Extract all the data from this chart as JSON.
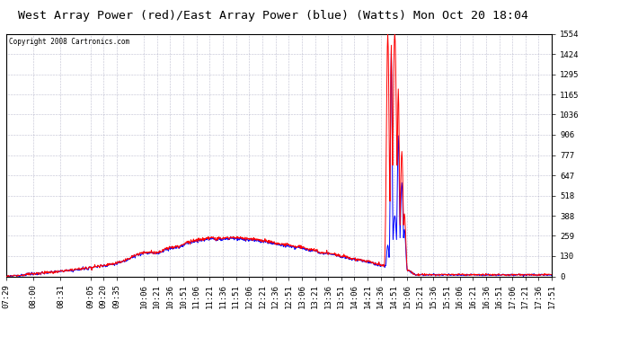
{
  "title": "West Array Power (red)/East Array Power (blue) (Watts) Mon Oct 20 18:04",
  "copyright": "Copyright 2008 Cartronics.com",
  "y_min": 0.0,
  "y_max": 1553.8,
  "y_ticks": [
    0.0,
    129.5,
    259.0,
    388.4,
    517.9,
    647.4,
    776.9,
    906.4,
    1035.9,
    1165.3,
    1294.8,
    1424.3,
    1553.8
  ],
  "x_labels": [
    "07:29",
    "08:00",
    "08:31",
    "09:05",
    "09:20",
    "09:35",
    "10:06",
    "10:21",
    "10:36",
    "10:51",
    "11:06",
    "11:21",
    "11:36",
    "11:51",
    "12:06",
    "12:21",
    "12:36",
    "12:51",
    "13:06",
    "13:21",
    "13:36",
    "13:51",
    "14:06",
    "14:21",
    "14:36",
    "14:51",
    "15:06",
    "15:21",
    "15:36",
    "15:51",
    "16:06",
    "16:21",
    "16:36",
    "16:51",
    "17:06",
    "17:21",
    "17:36",
    "17:51"
  ],
  "red_color": "#ff0000",
  "blue_color": "#0000ff",
  "bg_color": "#ffffff",
  "grid_color": "#8888aa",
  "title_fontsize": 9.5,
  "tick_fontsize": 6.5
}
